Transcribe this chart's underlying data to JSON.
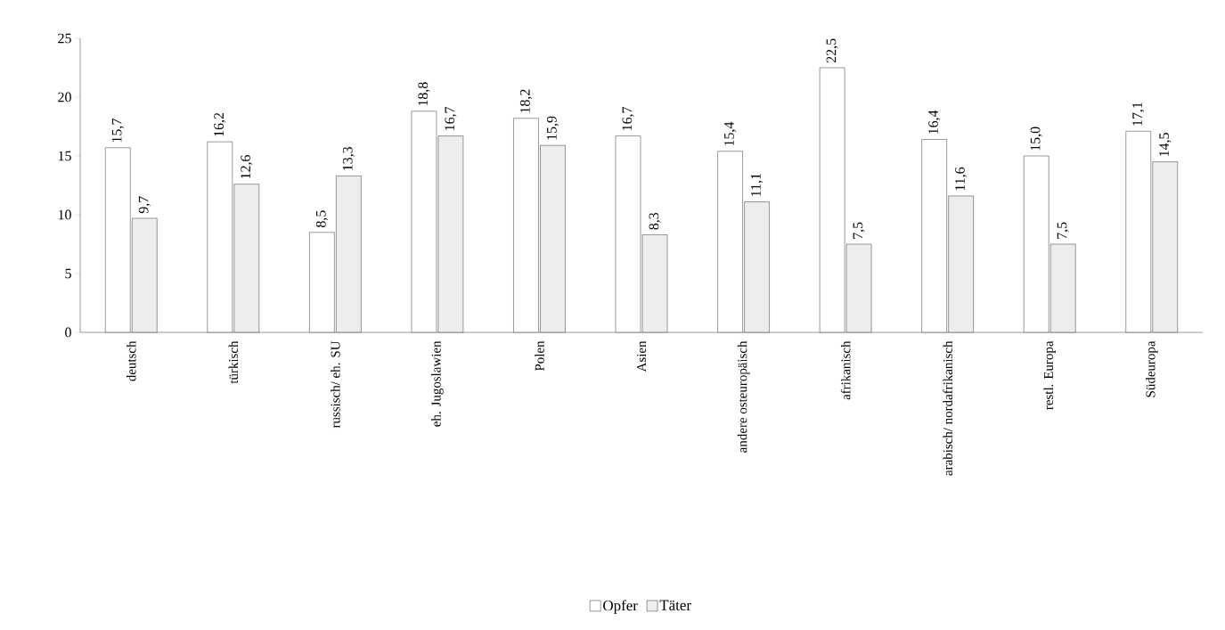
{
  "chart_data": {
    "type": "bar",
    "categories": [
      "deutsch",
      "türkisch",
      "russisch/ eh. SU",
      "eh. Jugoslawien",
      "Polen",
      "Asien",
      "andere osteuropäisch",
      "afrikanisch",
      "arabisch/ nordafrikanisch",
      "restl. Europa",
      "Südeuropa"
    ],
    "series": [
      {
        "name": "Opfer",
        "color": "#ffffff",
        "values": [
          15.7,
          16.2,
          8.5,
          18.8,
          18.2,
          16.7,
          15.4,
          22.5,
          16.4,
          15.0,
          17.1
        ],
        "value_labels": [
          "15,7",
          "16,2",
          "8,5",
          "18,8",
          "18,2",
          "16,7",
          "15,4",
          "22,5",
          "16,4",
          "15,0",
          "17,1"
        ]
      },
      {
        "name": "Täter",
        "color": "#ededed",
        "values": [
          9.7,
          12.6,
          13.3,
          16.7,
          15.9,
          8.3,
          11.1,
          7.5,
          11.6,
          7.5,
          14.5
        ],
        "value_labels": [
          "9,7",
          "12,6",
          "13,3",
          "16,7",
          "15,9",
          "8,3",
          "11,1",
          "7,5",
          "11,6",
          "7,5",
          "14,5"
        ]
      }
    ],
    "ylim": [
      0,
      25
    ],
    "yticks": [
      0,
      5,
      10,
      15,
      20,
      25
    ],
    "legend": "bottom"
  }
}
